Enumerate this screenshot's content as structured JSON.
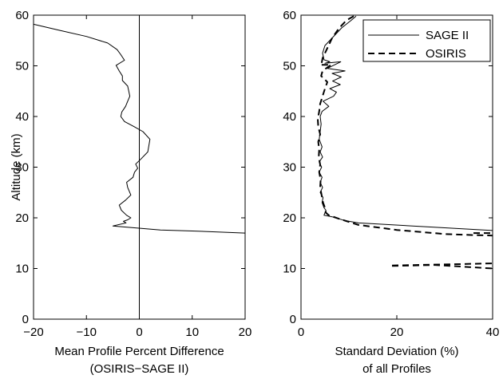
{
  "chart_data": [
    {
      "type": "line",
      "title": "",
      "xlabel_lines": [
        "Mean Profile Percent Difference",
        "(OSIRIS−SAGE II)"
      ],
      "ylabel": "Altitude (km)",
      "xlim": [
        -20,
        20
      ],
      "ylim": [
        0,
        60
      ],
      "xticks": [
        -20,
        -10,
        0,
        10,
        20
      ],
      "xtick_labels": [
        "−20",
        "−10",
        "0",
        "10",
        "20"
      ],
      "yticks": [
        0,
        10,
        20,
        30,
        40,
        50,
        60
      ],
      "ytick_labels": [
        "0",
        "10",
        "20",
        "30",
        "40",
        "50",
        "60"
      ],
      "grid": false,
      "reference_line": {
        "x": 0
      },
      "series": [
        {
          "style": "solid",
          "color": "#000000",
          "x": [
            -20,
            -15,
            -10,
            -6,
            -4.2,
            -3.5,
            -2.8,
            -4.4,
            -3.8,
            -3.2,
            -3.2,
            -2.2,
            -2.0,
            -1.8,
            -2.2,
            -2.6,
            -3.3,
            -3.5,
            -2.8,
            -1.0,
            0.7,
            2.0,
            1.6,
            0.3,
            -0.7,
            -0.3,
            -0.9,
            -1.2,
            -2.4,
            -2.2,
            -1.6,
            -2.6,
            -3.8,
            -3.4,
            -2.4,
            -1.6,
            -2.2,
            -3.0,
            -2.5,
            -5.0,
            4.0,
            10.0,
            20.0
          ],
          "y": [
            58.2,
            57,
            55.8,
            54.5,
            53.2,
            52.2,
            51.1,
            50.1,
            49.0,
            48.0,
            47.1,
            46.0,
            45.0,
            44.0,
            43.0,
            42.0,
            40.9,
            40.0,
            39.0,
            38.0,
            37.0,
            35.5,
            33.0,
            31.6,
            30.6,
            29.8,
            29.0,
            28.0,
            27.0,
            26.0,
            24.5,
            23.5,
            22.5,
            21.5,
            20.5,
            20.0,
            19.6,
            19.3,
            19.0,
            18.4,
            17.6,
            17.4,
            17.0
          ]
        }
      ]
    },
    {
      "type": "line",
      "title": "",
      "xlabel_lines": [
        "Standard Deviation (%)",
        "of all Profiles"
      ],
      "ylabel": "",
      "xlim": [
        0,
        40
      ],
      "ylim": [
        0,
        60
      ],
      "xticks": [
        0,
        20,
        40
      ],
      "xtick_labels": [
        "0",
        "20",
        "40"
      ],
      "yticks": [
        0,
        10,
        20,
        30,
        40,
        50,
        60
      ],
      "ytick_labels": [
        "0",
        "10",
        "20",
        "30",
        "40",
        "50",
        "60"
      ],
      "grid": false,
      "legend": "top-right",
      "series": [
        {
          "name": "SAGE II",
          "style": "solid",
          "color": "#000000",
          "segments": [
            {
              "x": [
                11.5,
                10.5,
                8.5,
                6.5,
                5.0,
                4.5,
                4.8,
                6.0,
                5.0,
                8.3,
                5.5,
                9.2,
                6.5,
                8.4,
                6.6,
                8.2,
                6.0,
                7.4,
                6.8,
                4.6,
                5.8,
                4.4,
                4.0,
                4.2,
                4.0,
                3.8,
                4.4,
                4.0,
                4.5,
                3.8,
                4.3,
                3.8,
                4.4,
                4.0,
                4.5,
                4.0,
                4.6,
                4.4,
                4.8,
                5.2,
                5.0,
                4.8,
                6.5,
                9.0,
                12.0,
                40.0
              ],
              "y": [
                59.8,
                59.0,
                57.5,
                55.5,
                54.0,
                52.5,
                51.2,
                50.8,
                50.5,
                50.8,
                49.5,
                49.0,
                48.5,
                47.8,
                47.0,
                46.3,
                45.5,
                44.8,
                44.0,
                43.0,
                42.0,
                41.0,
                40.0,
                38.5,
                37.0,
                35.5,
                34.0,
                33.0,
                32.0,
                31.0,
                30.0,
                29.0,
                28.0,
                27.0,
                26.0,
                25.0,
                24.0,
                23.0,
                22.0,
                21.5,
                21.0,
                20.5,
                20.2,
                19.5,
                19.0,
                17.5
              ]
            }
          ]
        },
        {
          "name": "OSIRIS",
          "style": "dashed",
          "color": "#000000",
          "segments": [
            {
              "x": [
                11.0,
                9.5,
                8.0,
                6.5,
                5.5,
                4.5,
                4.3,
                4.0,
                6.3,
                4.5,
                4.2,
                5.5,
                5.0,
                4.5,
                4.0,
                3.8,
                3.5,
                3.6,
                4.0,
                3.6,
                3.8,
                3.7,
                4.0,
                3.8,
                4.1,
                4.0,
                4.3,
                4.6,
                5.0,
                5.2,
                5.8,
                8.0,
                12.0,
                20.0,
                30.0,
                36.0,
                40.0
              ],
              "y": [
                59.8,
                59.0,
                57.5,
                55.5,
                53.5,
                51.5,
                50.5,
                50.2,
                50.2,
                49.0,
                48.0,
                46.8,
                45.5,
                44.0,
                42.5,
                41.0,
                39.5,
                38.0,
                36.5,
                35.0,
                33.5,
                32.0,
                30.5,
                29.0,
                27.5,
                26.0,
                24.5,
                23.0,
                22.0,
                21.0,
                20.5,
                19.8,
                18.6,
                17.6,
                16.8,
                16.6,
                16.5
              ]
            },
            {
              "x": [
                36.0,
                40.0
              ],
              "y": [
                17.0,
                17.0
              ]
            },
            {
              "x": [
                19.0,
                28.0,
                40.0
              ],
              "y": [
                10.5,
                10.7,
                10.0
              ]
            },
            {
              "x": [
                19.0,
                30.0,
                40.0
              ],
              "y": [
                10.6,
                10.8,
                11.0
              ]
            }
          ]
        }
      ]
    }
  ]
}
